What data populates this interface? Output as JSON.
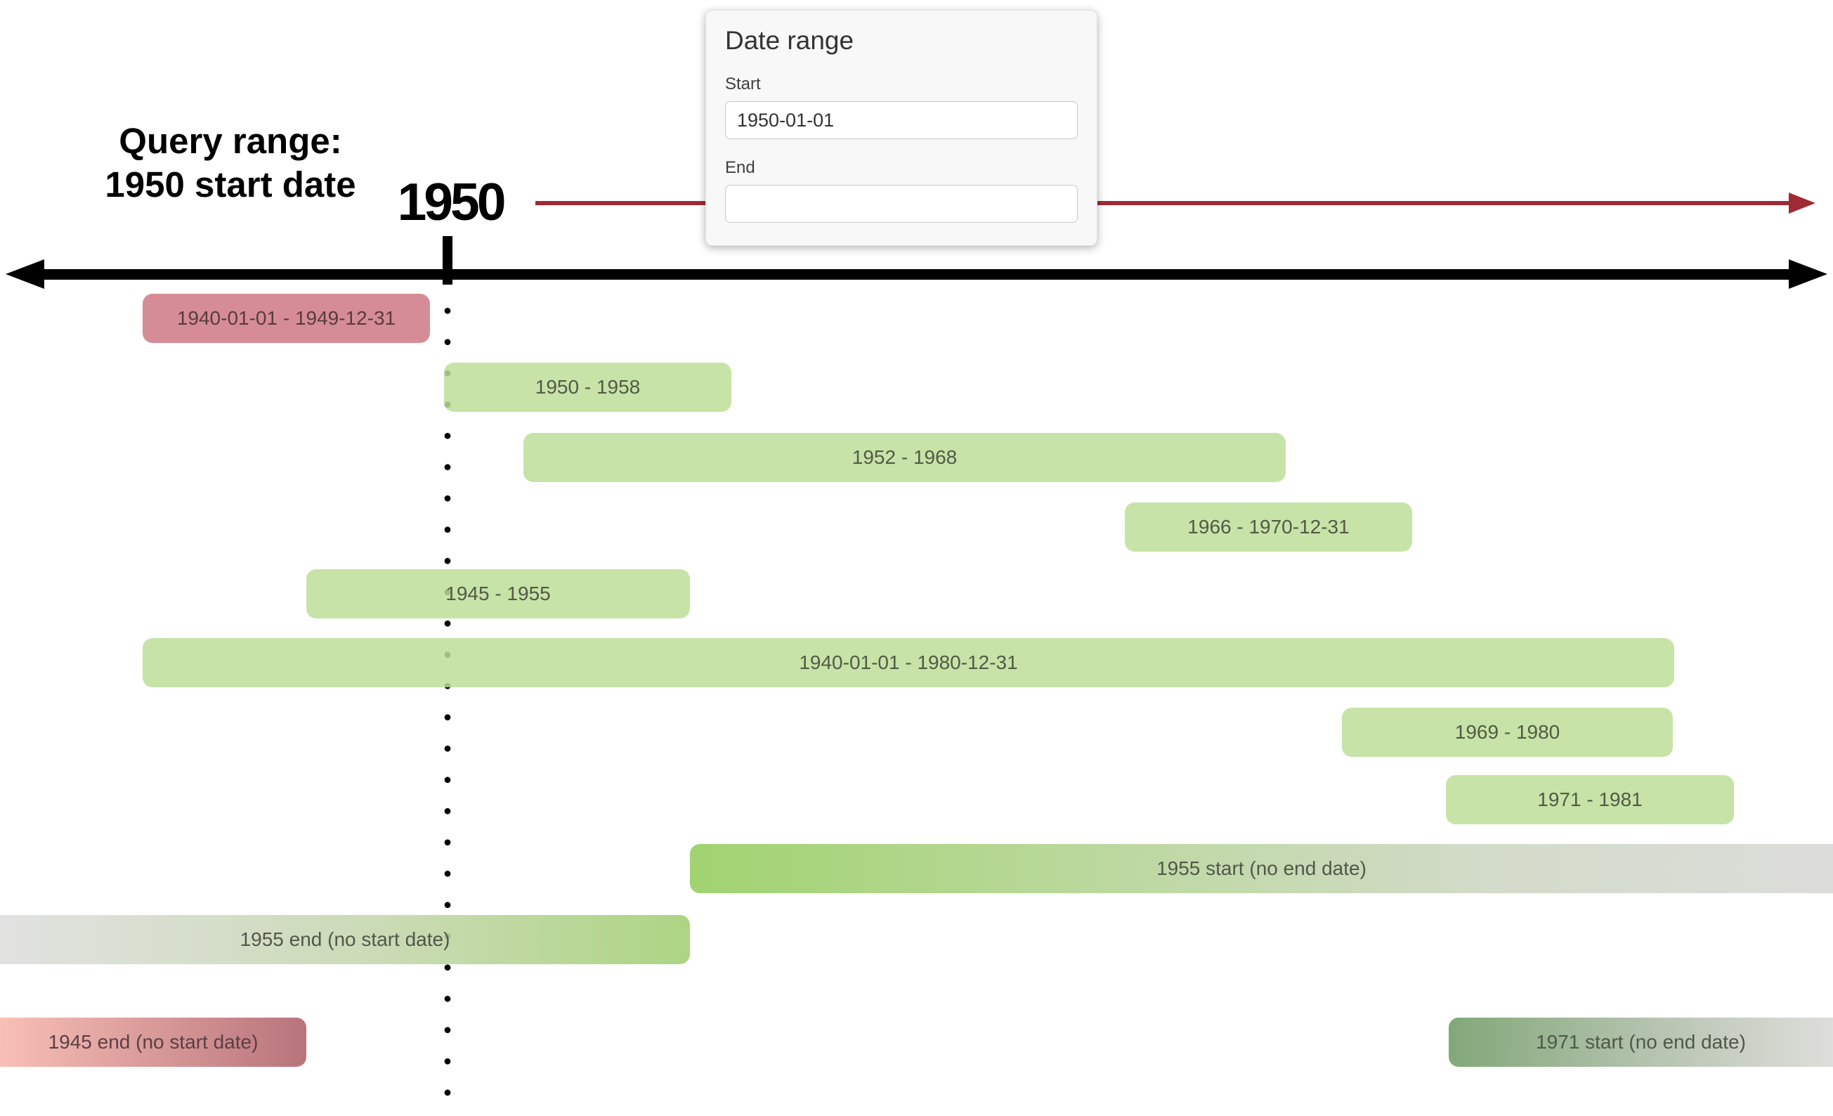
{
  "annotation": {
    "line1": "Query range:",
    "line2": "1950 start date"
  },
  "axis": {
    "year_marker": "1950"
  },
  "date_range_panel": {
    "title": "Date range",
    "start_label": "Start",
    "start_value": "1950-01-01",
    "end_label": "End",
    "end_value": ""
  },
  "bars": [
    {
      "label": "1940-01-01 - 1949-12-31",
      "status": "excluded",
      "style": "solid-red"
    },
    {
      "label": "1950 - 1958",
      "status": "included",
      "style": "solid-green"
    },
    {
      "label": "1952 - 1968",
      "status": "included",
      "style": "solid-green"
    },
    {
      "label": "1966 - 1970-12-31",
      "status": "included",
      "style": "solid-green"
    },
    {
      "label": "1945 - 1955",
      "status": "included",
      "style": "solid-green"
    },
    {
      "label": "1940-01-01 - 1980-12-31",
      "status": "included",
      "style": "solid-green"
    },
    {
      "label": "1969 - 1980",
      "status": "included",
      "style": "solid-green"
    },
    {
      "label": "1971 - 1981",
      "status": "included",
      "style": "solid-green"
    },
    {
      "label": "1955 start (no end date)",
      "status": "included-open-end",
      "style": "gradient-green-to-gray"
    },
    {
      "label": "1955 end (no start date)",
      "status": "included-open-start",
      "style": "gradient-gray-to-green"
    },
    {
      "label": "1945 end (no start date)",
      "status": "excluded-open-start",
      "style": "gradient-red"
    },
    {
      "label": "1971 start (no end date)",
      "status": "included-open-end",
      "style": "gradient-green-muted-to-gray"
    }
  ],
  "colors": {
    "included_green": "#c9e4ab",
    "excluded_red": "#d68c96",
    "open_range_gray": "#dcdcdc",
    "query_arrow_red": "#9e2b33",
    "axis_black": "#000000",
    "panel_background": "#f8f8f8"
  }
}
